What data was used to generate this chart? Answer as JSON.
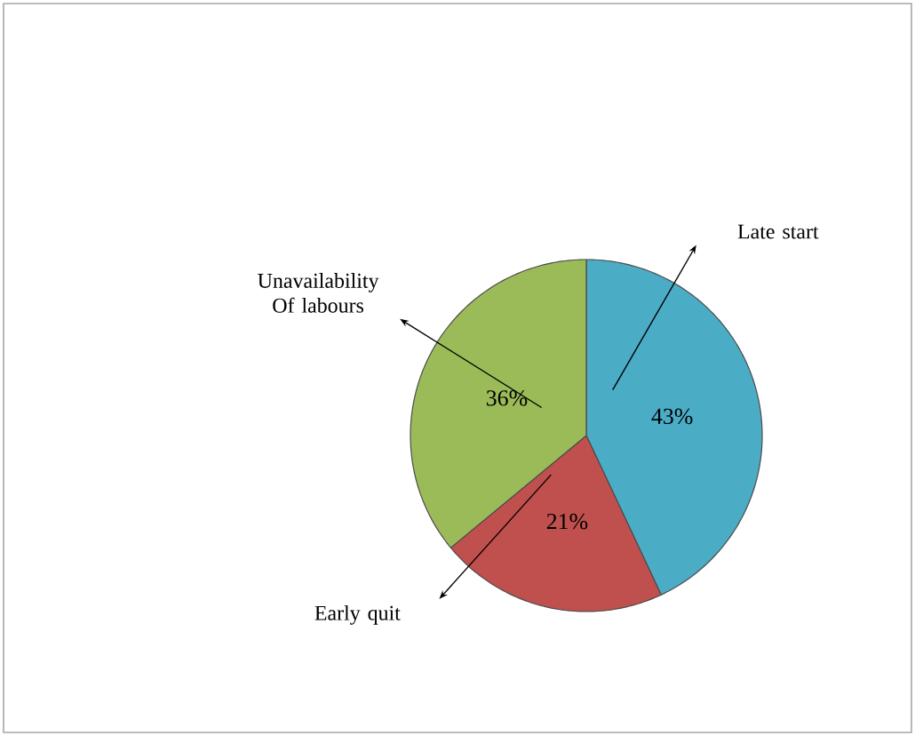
{
  "chart_data": {
    "type": "pie",
    "categories": [
      "Late start",
      "Early quit",
      "Unavailability Of labours"
    ],
    "values": [
      43,
      21,
      36
    ],
    "colors": [
      "#4bacc6",
      "#c0504d",
      "#9bbb59"
    ],
    "value_labels": [
      "43%",
      "21%",
      "36%"
    ]
  }
}
